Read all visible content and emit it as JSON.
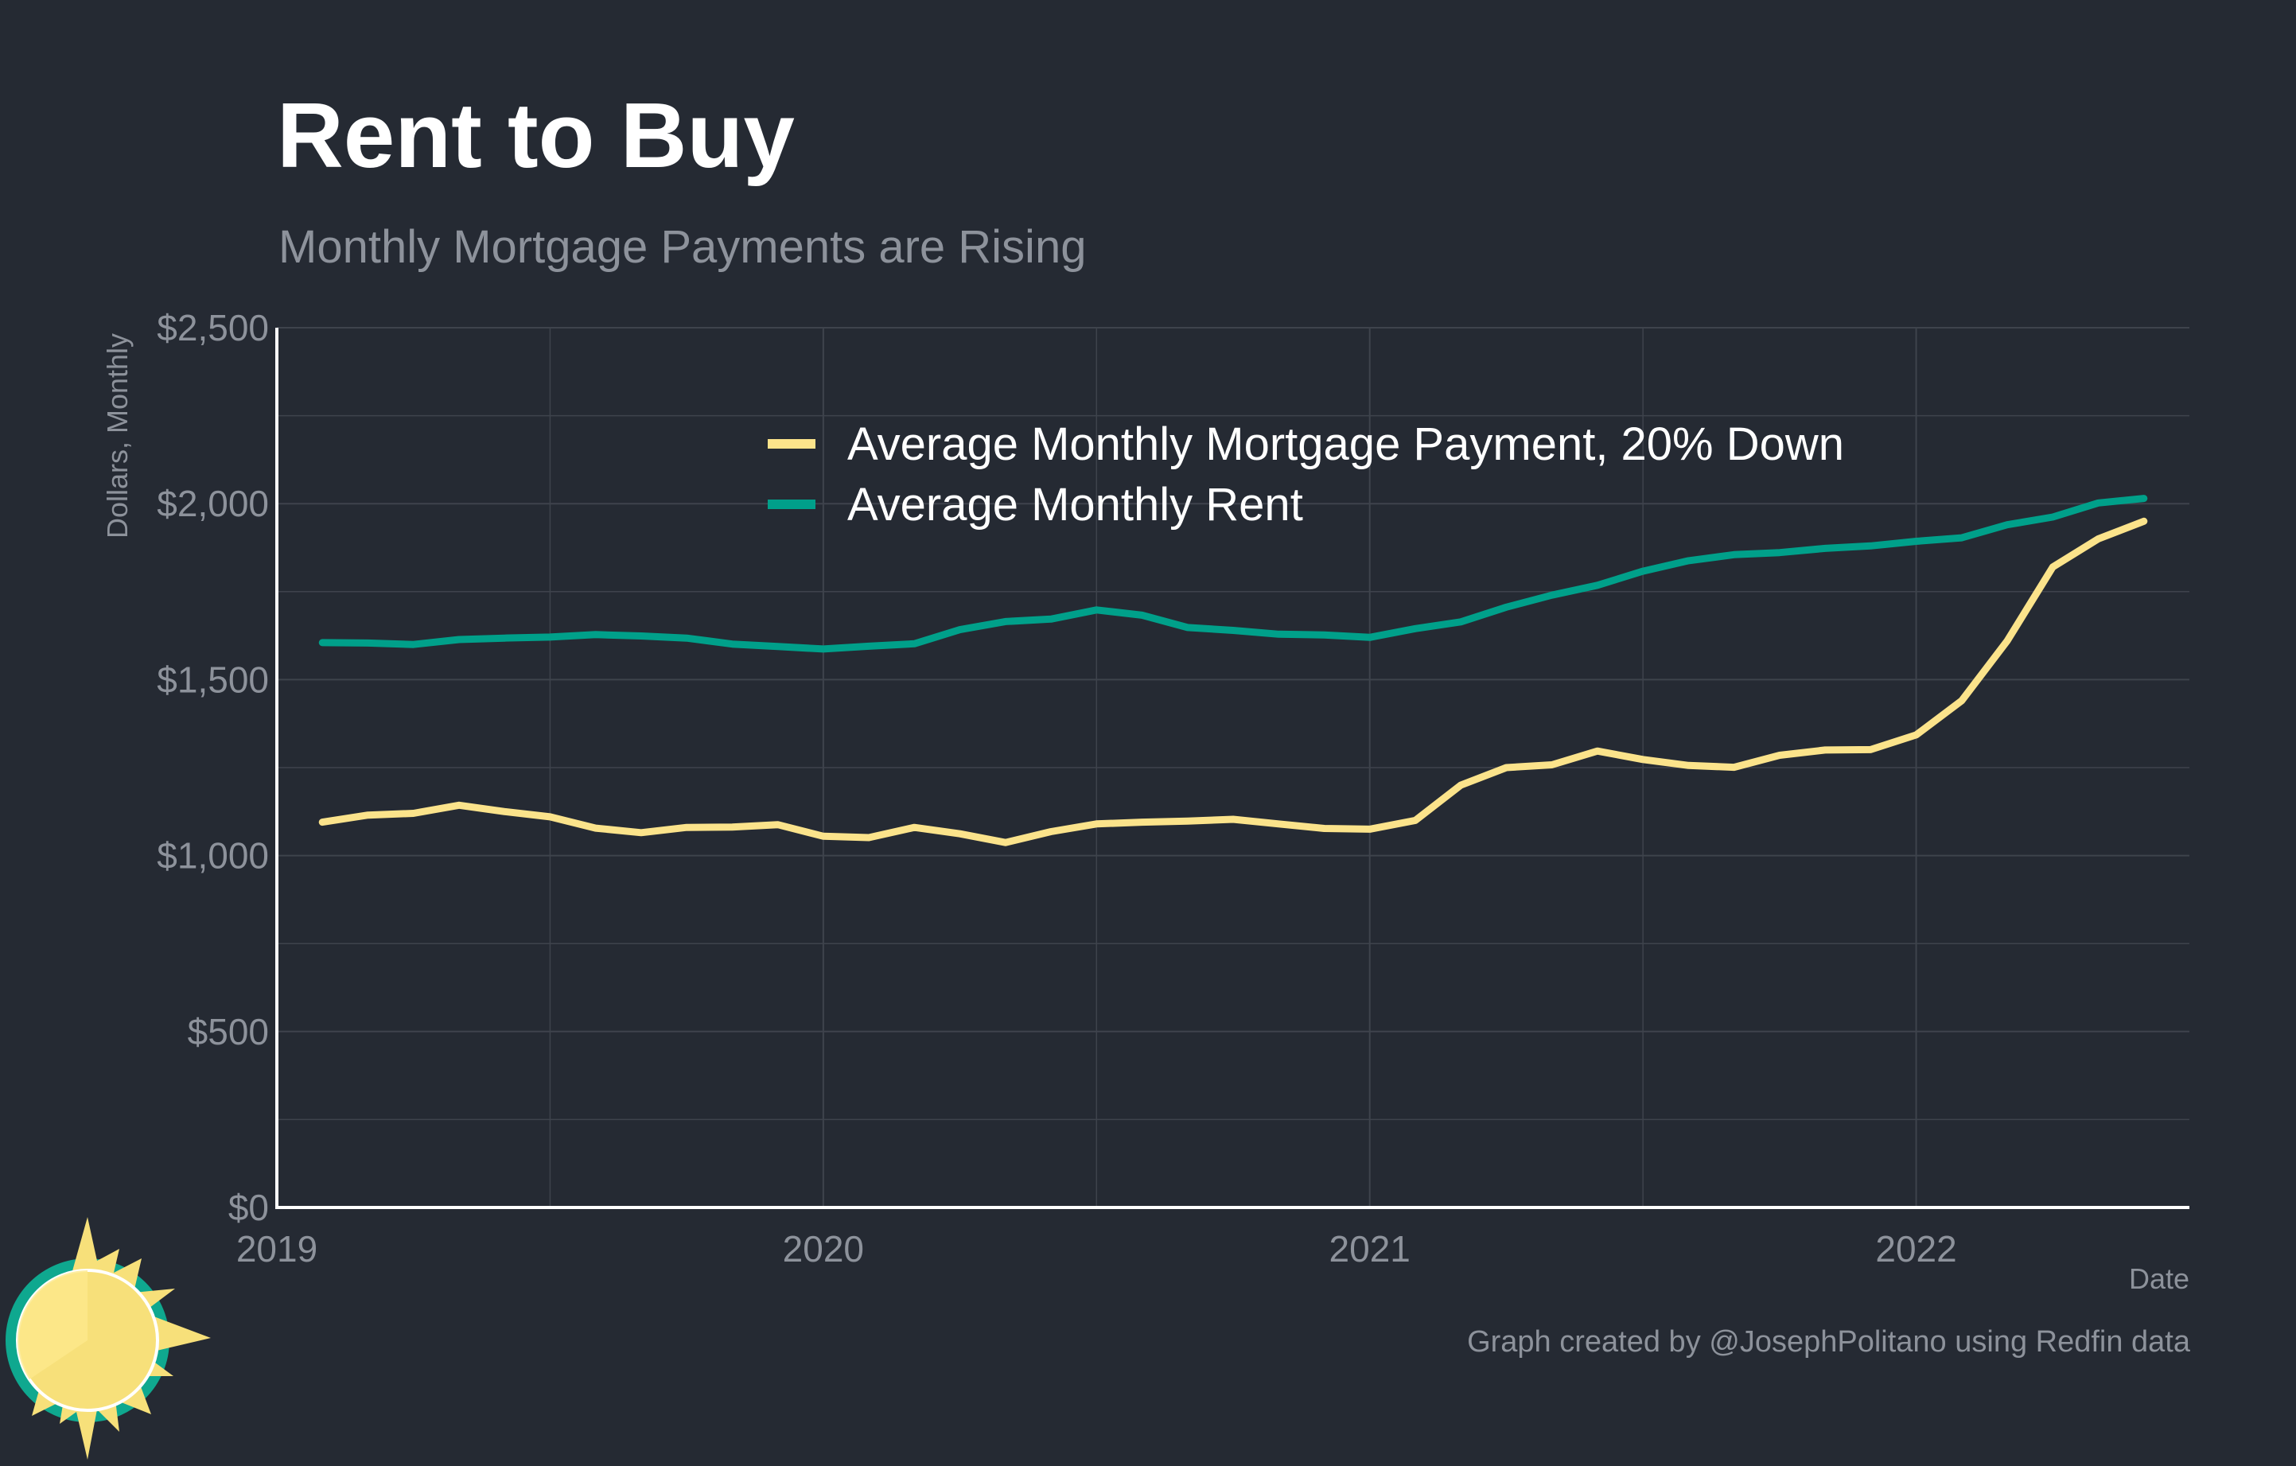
{
  "title": "Rent to Buy",
  "subtitle": "Monthly Mortgage Payments are Rising",
  "caption": "Graph created by @JosephPolitano using Redfin data",
  "logo": {
    "icon": "sun-logo-icon",
    "ring_color": "#0fa88f",
    "sun_color": "#f7e07a"
  },
  "colors": {
    "background": "#252a33",
    "mortgage": "#fbe38b",
    "rent": "#00a08a",
    "grid": "#3e434c",
    "axis": "#ffffff",
    "muted_text": "#8d929b"
  },
  "chart_data": {
    "type": "line",
    "xlabel": "Date",
    "ylabel": "Dollars, Monthly",
    "xlim": [
      "2019-01",
      "2022-07"
    ],
    "ylim": [
      0,
      2500
    ],
    "x_ticks": [
      "2019",
      "2020",
      "2021",
      "2022"
    ],
    "y_ticks": [
      "$0",
      "$500",
      "$1,000",
      "$1,500",
      "$2,000",
      "$2,500"
    ],
    "y_tick_values": [
      0,
      500,
      1000,
      1500,
      2000,
      2500
    ],
    "grid": true,
    "legend": "top-center",
    "x": [
      "2019-02",
      "2019-03",
      "2019-04",
      "2019-05",
      "2019-06",
      "2019-07",
      "2019-08",
      "2019-09",
      "2019-10",
      "2019-11",
      "2019-12",
      "2020-01",
      "2020-02",
      "2020-03",
      "2020-04",
      "2020-05",
      "2020-06",
      "2020-07",
      "2020-08",
      "2020-09",
      "2020-10",
      "2020-11",
      "2020-12",
      "2021-01",
      "2021-02",
      "2021-03",
      "2021-04",
      "2021-05",
      "2021-06",
      "2021-07",
      "2021-08",
      "2021-09",
      "2021-10",
      "2021-11",
      "2021-12",
      "2022-01",
      "2022-02",
      "2022-03",
      "2022-04",
      "2022-05",
      "2022-06"
    ],
    "series": [
      {
        "name": "Average Monthly Mortgage Payment, 20% Down",
        "color": "#fbe38b",
        "values": [
          1095,
          1115,
          1120,
          1143,
          1125,
          1110,
          1078,
          1065,
          1080,
          1081,
          1088,
          1055,
          1051,
          1080,
          1062,
          1037,
          1068,
          1090,
          1095,
          1098,
          1103,
          1090,
          1077,
          1075,
          1100,
          1200,
          1250,
          1258,
          1297,
          1273,
          1256,
          1251,
          1285,
          1300,
          1301,
          1343,
          1440,
          1610,
          1820,
          1900,
          1950
        ]
      },
      {
        "name": "Average Monthly Rent",
        "color": "#00a08a",
        "values": [
          1605,
          1604,
          1600,
          1614,
          1618,
          1621,
          1628,
          1624,
          1618,
          1601,
          1594,
          1587,
          1595,
          1602,
          1642,
          1665,
          1672,
          1698,
          1683,
          1648,
          1640,
          1629,
          1627,
          1620,
          1645,
          1664,
          1706,
          1740,
          1768,
          1808,
          1838,
          1855,
          1861,
          1873,
          1880,
          1893,
          1903,
          1940,
          1962,
          2002,
          2015
        ]
      }
    ]
  }
}
